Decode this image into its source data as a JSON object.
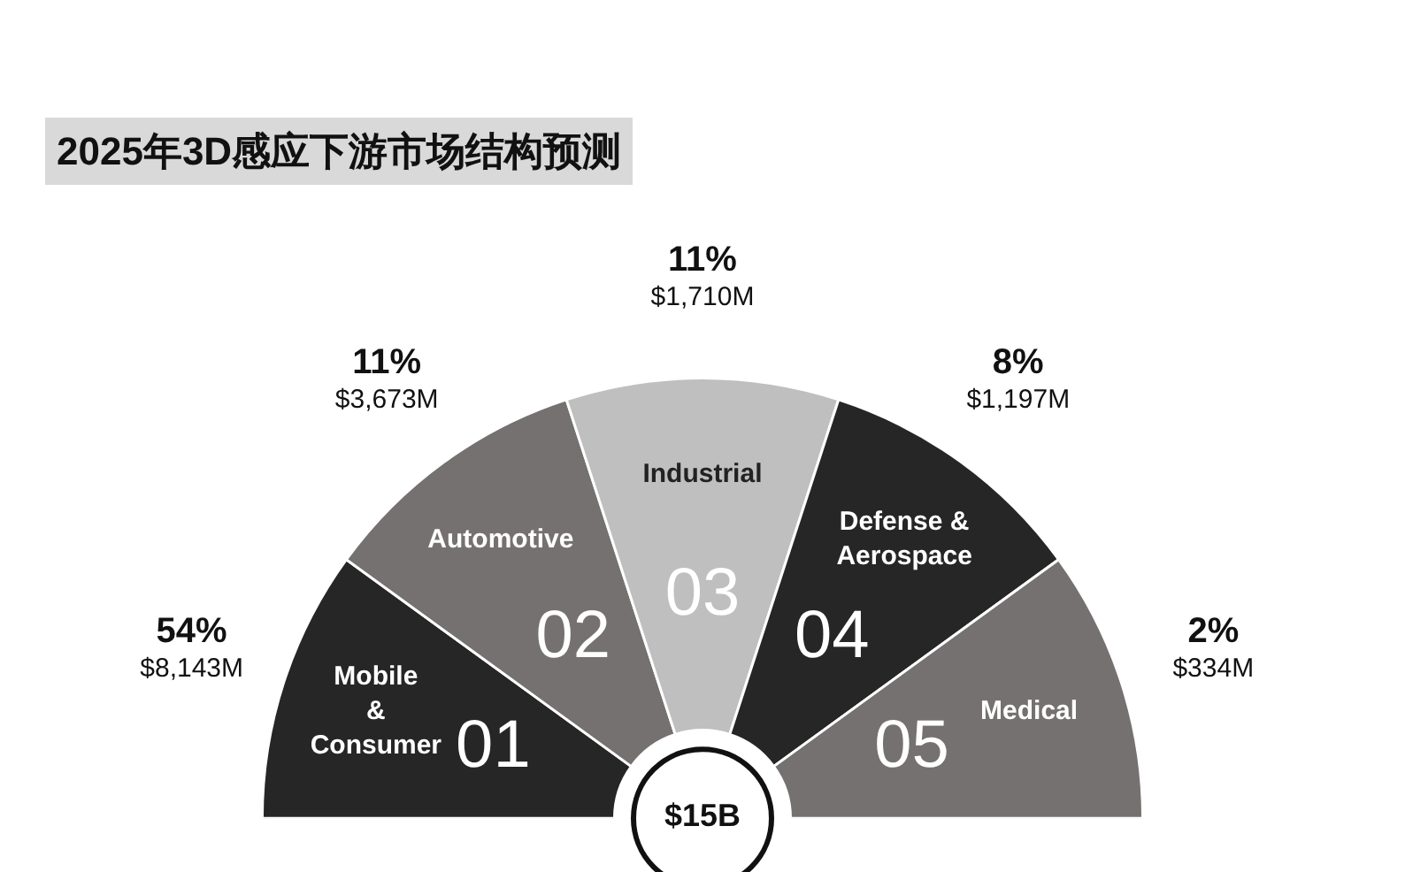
{
  "chart_data": {
    "type": "other",
    "title": "2025年3D感应下游市场结构预测",
    "categories": [
      "Mobile\n&\nConsumer",
      "Automotive",
      "Industrial",
      "Defense &\nAerospace",
      "Medical"
    ],
    "colors": [
      "#262626",
      "#767171",
      "#bfbfbf",
      "#262626",
      "#767171"
    ],
    "series": [
      {
        "values": [
          54,
          11,
          11,
          8,
          2
        ],
        "value_labels": [
          "54%",
          "11%",
          "11%",
          "8%",
          "2%"
        ]
      },
      {
        "values": [
          8143,
          3673,
          1710,
          1197,
          334
        ],
        "value_labels": [
          "$8,143M",
          "$3,673M",
          "$1,710M",
          "$1,197M",
          "$334M"
        ]
      }
    ],
    "annotations": [
      "$15B",
      {
        "text": "01",
        "x": "Mobile\n&\nConsumer"
      },
      {
        "text": "02",
        "x": "Automotive"
      },
      {
        "text": "03",
        "x": "Industrial"
      },
      {
        "text": "04",
        "x": "Defense &\nAerospace"
      },
      {
        "text": "05",
        "x": "Medical"
      }
    ]
  }
}
